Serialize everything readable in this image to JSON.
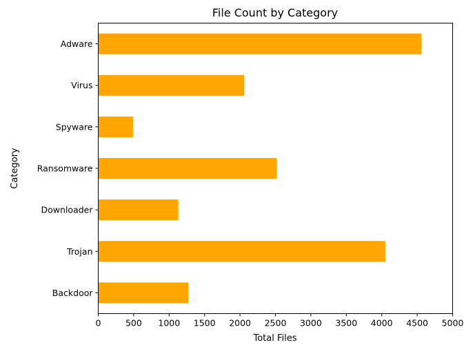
{
  "chart_data": {
    "type": "bar",
    "orientation": "horizontal",
    "title": "File Count by Category",
    "xlabel": "Total Files",
    "ylabel": "Category",
    "categories": [
      "Adware",
      "Virus",
      "Spyware",
      "Ransomware",
      "Downloader",
      "Trojan",
      "Backdoor"
    ],
    "values": [
      4560,
      2060,
      490,
      2520,
      1130,
      4050,
      1270
    ],
    "xlim": [
      0,
      5000
    ],
    "xticks": [
      0,
      500,
      1000,
      1500,
      2000,
      2500,
      3000,
      3500,
      4000,
      4500,
      5000
    ],
    "grid": false,
    "bar_color": "#FFA500"
  }
}
